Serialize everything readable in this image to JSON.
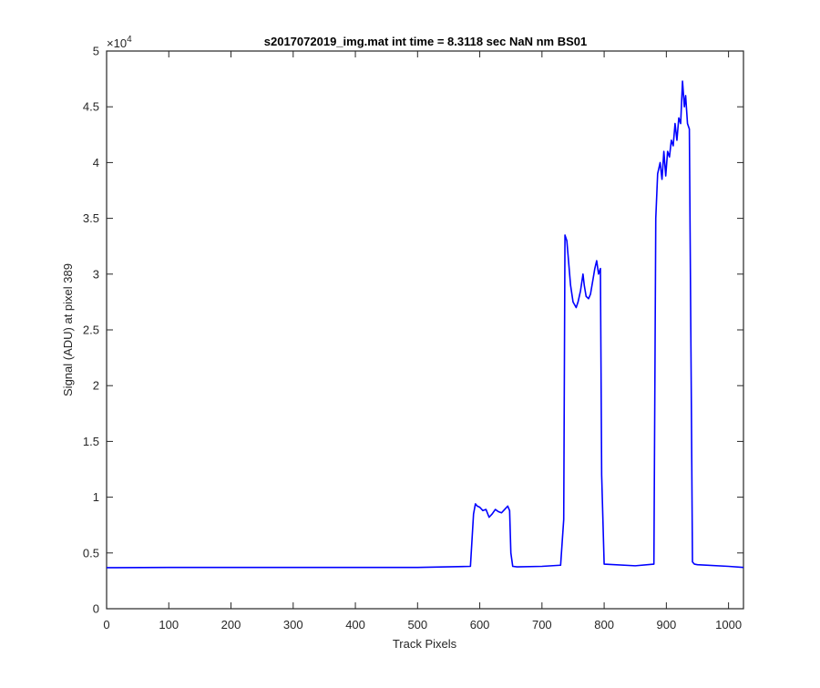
{
  "chart_data": {
    "type": "line",
    "title": "s2017072019_img.mat int time = 8.3118 sec  NaN nm BS01",
    "xlabel": "Track Pixels",
    "ylabel": "Signal (ADU) at pixel 389",
    "xlim": [
      0,
      1024
    ],
    "ylim": [
      0,
      50000
    ],
    "y_exponent_label": "×10",
    "y_exponent_power": "4",
    "xticks": [
      0,
      100,
      200,
      300,
      400,
      500,
      600,
      700,
      800,
      900,
      1000
    ],
    "xtick_labels": [
      "0",
      "100",
      "200",
      "300",
      "400",
      "500",
      "600",
      "700",
      "800",
      "900",
      "1000"
    ],
    "yticks": [
      0,
      5000,
      10000,
      15000,
      20000,
      25000,
      30000,
      35000,
      40000,
      45000,
      50000
    ],
    "ytick_labels": [
      "0",
      "0.5",
      "1",
      "1.5",
      "2",
      "2.5",
      "3",
      "3.5",
      "4",
      "4.5",
      "5"
    ],
    "grid": false,
    "line_color": "#0000ff",
    "series": [
      {
        "x": [
          0,
          100,
          200,
          300,
          400,
          500,
          585,
          590,
          593,
          596,
          600,
          605,
          610,
          615,
          620,
          625,
          630,
          635,
          640,
          645,
          648,
          650,
          653,
          660,
          700,
          730,
          735,
          737,
          740,
          743,
          746,
          750,
          755,
          758,
          762,
          766,
          768,
          771,
          775,
          778,
          782,
          785,
          788,
          791,
          794,
          796,
          800,
          850,
          880,
          883,
          886,
          890,
          893,
          896,
          899,
          902,
          905,
          908,
          911,
          914,
          917,
          920,
          923,
          926,
          929,
          931,
          934,
          937,
          940,
          942,
          945,
          950,
          1000,
          1024
        ],
        "y": [
          3680,
          3700,
          3700,
          3700,
          3700,
          3700,
          3800,
          8500,
          9400,
          9200,
          9100,
          8800,
          8900,
          8200,
          8500,
          8900,
          8700,
          8600,
          8900,
          9200,
          8800,
          5000,
          3800,
          3750,
          3800,
          3900,
          8000,
          33500,
          33000,
          31000,
          29000,
          27500,
          27000,
          27500,
          28500,
          30000,
          29000,
          28000,
          27800,
          28200,
          29500,
          30500,
          31200,
          30000,
          30500,
          12000,
          4000,
          3850,
          4000,
          35000,
          39000,
          40000,
          38500,
          41000,
          38800,
          41000,
          40500,
          42000,
          41500,
          43500,
          42000,
          44000,
          43500,
          47300,
          45000,
          46000,
          43500,
          43000,
          20000,
          4200,
          4000,
          3950,
          3800,
          3700
        ]
      }
    ]
  }
}
